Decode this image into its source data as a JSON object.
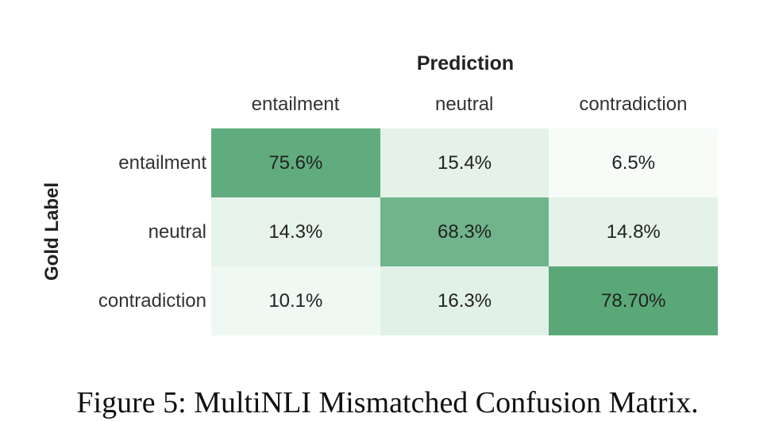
{
  "chart_data": {
    "type": "heatmap",
    "title": "Prediction",
    "xlabel": "Prediction",
    "ylabel": "Gold Label",
    "x_categories": [
      "entailment",
      "neutral",
      "contradiction"
    ],
    "y_categories": [
      "entailment",
      "neutral",
      "contradiction"
    ],
    "values": [
      [
        75.6,
        15.4,
        6.5
      ],
      [
        14.3,
        68.3,
        14.8
      ],
      [
        10.1,
        16.3,
        78.7
      ]
    ],
    "value_labels": [
      [
        "75.6%",
        "15.4%",
        "6.5%"
      ],
      [
        "14.3%",
        "68.3%",
        "14.8%"
      ],
      [
        "10.1%",
        "16.3%",
        "78.70%"
      ]
    ],
    "colormap": {
      "low": "#f7fcf9",
      "high": "#5aa878"
    },
    "caption": "Figure 5: MultiNLI Mismatched Confusion Matrix."
  }
}
